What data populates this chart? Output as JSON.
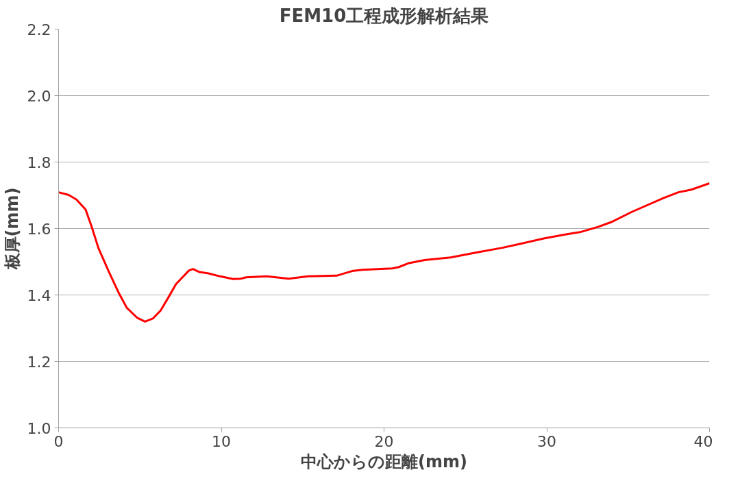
{
  "chart_data": {
    "type": "line",
    "title": "FEM10工程成形解析結果",
    "xlabel": "中心からの距離(mm)",
    "ylabel": "板厚(mm)",
    "xlim": [
      0,
      40
    ],
    "xticks": [
      0,
      10,
      20,
      30,
      40
    ],
    "ylim": [
      1.0,
      2.2
    ],
    "yticks": [
      {
        "value": 1.0,
        "label": "1.0"
      },
      {
        "value": 1.2,
        "label": "1.2"
      },
      {
        "value": 1.4,
        "label": "1.4"
      },
      {
        "value": 1.6,
        "label": "1.6"
      },
      {
        "value": 1.8,
        "label": "1.8"
      },
      {
        "value": 2.0,
        "label": "2.0"
      },
      {
        "value": 2.2,
        "label": "2.2"
      }
    ],
    "grid": "y",
    "marker": "none",
    "line_style": "solid",
    "series": [
      {
        "color": "#ff0000",
        "x": [
          0,
          0.62,
          1.1,
          1.66,
          2.05,
          2.45,
          3.09,
          3.72,
          4.2,
          4.84,
          5.31,
          5.79,
          6.27,
          6.74,
          7.22,
          8.02,
          8.26,
          8.66,
          9.21,
          9.93,
          10.73,
          11.2,
          11.52,
          12.79,
          14.14,
          15.34,
          17.09,
          18.04,
          18.68,
          20.51,
          20.91,
          21.54,
          22.5,
          24.09,
          25.68,
          27.27,
          28.39,
          29.82,
          31.25,
          32.04,
          33.16,
          33.95,
          35.23,
          37.14,
          38.09,
          38.89,
          40
        ],
        "values": [
          1.709,
          1.701,
          1.687,
          1.657,
          1.603,
          1.541,
          1.47,
          1.404,
          1.361,
          1.331,
          1.32,
          1.329,
          1.353,
          1.392,
          1.433,
          1.474,
          1.478,
          1.469,
          1.465,
          1.456,
          1.448,
          1.449,
          1.453,
          1.456,
          1.449,
          1.456,
          1.458,
          1.472,
          1.476,
          1.48,
          1.484,
          1.496,
          1.505,
          1.513,
          1.528,
          1.542,
          1.554,
          1.57,
          1.583,
          1.589,
          1.605,
          1.619,
          1.65,
          1.691,
          1.709,
          1.717,
          1.736
        ]
      }
    ]
  }
}
